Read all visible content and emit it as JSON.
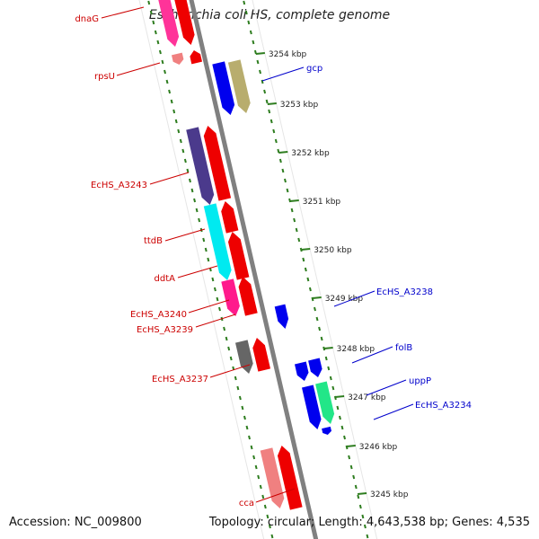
{
  "title": "Escherichia coli HS, complete genome",
  "footer": {
    "accession": "Accession: NC_009800",
    "summary": "Topology: circular; Length: 4,643,538 bp; Genes: 4,535"
  },
  "colors": {
    "forward_label": "#cc0000",
    "reverse_label": "#0000cc",
    "backbone": "#808080",
    "tick": "#2e7d1f"
  },
  "ruler": {
    "unit": "kbp",
    "ticks": [
      {
        "label": "3254 kbp"
      },
      {
        "label": "3253 kbp"
      },
      {
        "label": "3252 kbp"
      },
      {
        "label": "3251 kbp"
      },
      {
        "label": "3250 kbp"
      },
      {
        "label": "3249 kbp"
      },
      {
        "label": "3248 kbp"
      },
      {
        "label": "3247 kbp"
      },
      {
        "label": "3246 kbp"
      },
      {
        "label": "3245 kbp"
      }
    ]
  },
  "forward_genes": [
    "dnaG",
    "rpsU",
    "EcHS_A3243",
    "ttdB",
    "ddtA",
    "EcHS_A3240",
    "EcHS_A3239",
    "EcHS_A3237",
    "cca"
  ],
  "reverse_genes": [
    "gcp",
    "EcHS_A3238",
    "folB",
    "uppP",
    "EcHS_A3234"
  ]
}
